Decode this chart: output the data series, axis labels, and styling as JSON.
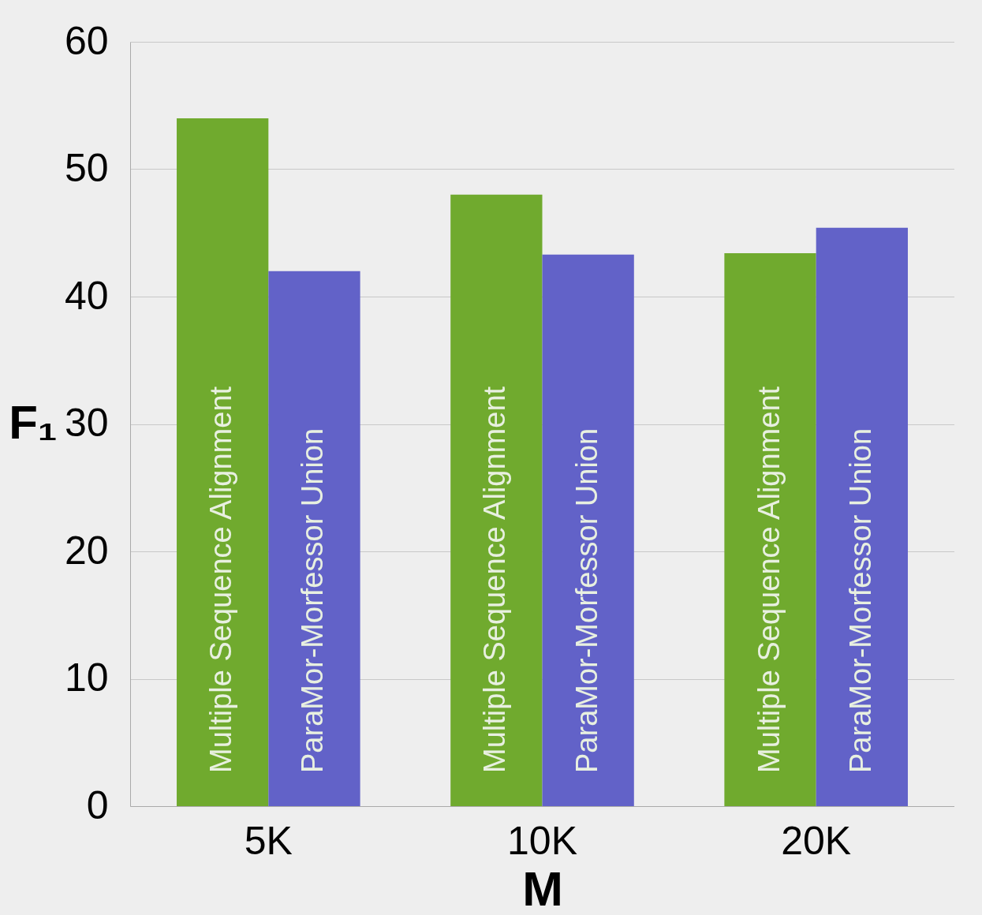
{
  "chart_data": {
    "type": "bar",
    "xlabel": "M",
    "ylabel": "F₁",
    "categories": [
      "5K",
      "10K",
      "20K"
    ],
    "series": [
      {
        "name": "Multiple Sequence Alignment",
        "color": "#70aa2e",
        "values": [
          54,
          48,
          43.4
        ]
      },
      {
        "name": "ParaMor-Morfessor Union",
        "color": "#6262c8",
        "values": [
          42,
          43.3,
          45.4
        ]
      }
    ],
    "ylim": [
      0,
      60
    ],
    "yticks": [
      0,
      10,
      20,
      30,
      40,
      50,
      60
    ],
    "grid": "y",
    "legend": false
  }
}
